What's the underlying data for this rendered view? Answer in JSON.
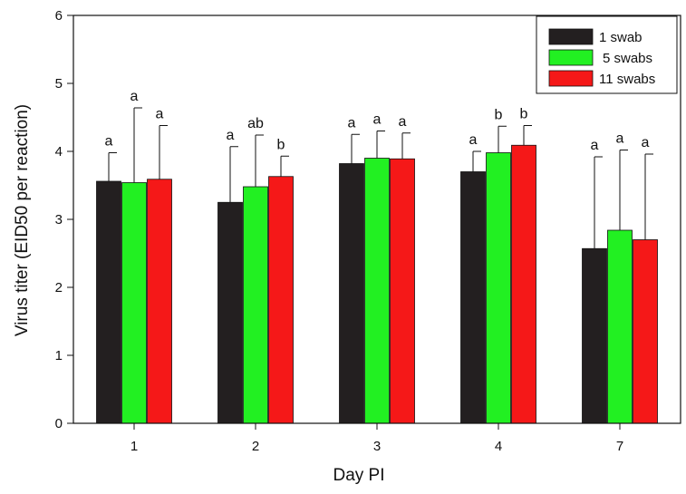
{
  "chart_data": {
    "type": "bar",
    "title": "",
    "xlabel": "Day PI",
    "ylabel": "Virus titer (EID50 per reaction)",
    "ylim": [
      0,
      6
    ],
    "yticks": [
      "0",
      "1",
      "2",
      "3",
      "4",
      "5",
      "6"
    ],
    "categories": [
      "1",
      "2",
      "3",
      "4",
      "7"
    ],
    "grid": false,
    "legend_position": "top-right",
    "series": [
      {
        "name": "1 swab",
        "color": "#231f20",
        "values": [
          3.56,
          3.25,
          3.82,
          3.7,
          2.57
        ],
        "error_upper": [
          3.98,
          4.07,
          4.25,
          4.0,
          3.92
        ],
        "labels": [
          "a",
          "a",
          "a",
          "a",
          "a"
        ]
      },
      {
        "name": "5 swabs",
        "color": "#22f022",
        "values": [
          3.54,
          3.48,
          3.9,
          3.98,
          2.84
        ],
        "error_upper": [
          4.64,
          4.24,
          4.3,
          4.37,
          4.02
        ],
        "labels": [
          "a",
          "ab",
          "a",
          "b",
          "a"
        ]
      },
      {
        "name": "11 swabs",
        "color": "#f51818",
        "values": [
          3.59,
          3.63,
          3.89,
          4.09,
          2.7
        ],
        "error_upper": [
          4.38,
          3.93,
          4.27,
          4.38,
          3.96
        ],
        "labels": [
          "a",
          "b",
          "a",
          "b",
          "a"
        ]
      }
    ]
  }
}
